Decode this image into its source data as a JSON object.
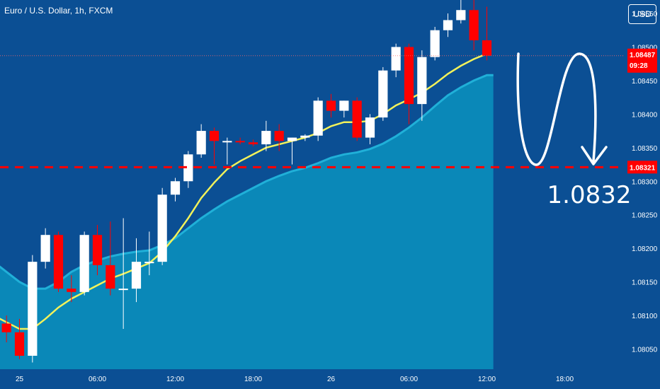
{
  "header": {
    "symbol": "Euro / U.S. Dollar, 1h, FXCM",
    "currency_button": "USD"
  },
  "current_price": {
    "label": "1.08487",
    "countdown": "09:28",
    "value": 1.08487,
    "color": "#ff0000"
  },
  "target": {
    "label": "1.0832",
    "axis_label": "1.08321",
    "value": 1.08321,
    "color": "#ff0000"
  },
  "colors": {
    "background": "#0b4f94",
    "area_fill": "#0a88b8",
    "area_line": "#20b0d8",
    "ma_line": "#f2f25a",
    "ma_line_early": "#9be28c",
    "bull_candle": "#ffffff",
    "bear_candle": "#ff0000"
  },
  "chart_data": {
    "type": "candlestick",
    "title": "Euro / U.S. Dollar, 1h, FXCM",
    "y_axis": {
      "ticks": [
        1.0855,
        1.085,
        1.0845,
        1.084,
        1.0835,
        1.083,
        1.0825,
        1.082,
        1.0815,
        1.081,
        1.0805
      ],
      "tick_labels": [
        "1.08550",
        "1.08500",
        "1.08450",
        "1.08400",
        "1.08350",
        "1.08300",
        "1.08250",
        "1.08200",
        "1.08150",
        "1.08100",
        "1.08050"
      ],
      "ylim": [
        1.0802,
        1.0857
      ]
    },
    "x_axis": {
      "tick_labels": [
        "25",
        "06:00",
        "12:00",
        "18:00",
        "26",
        "06:00",
        "12:00",
        "18:00"
      ],
      "tick_bars": [
        1,
        7,
        13,
        19,
        25,
        31,
        37,
        43
      ],
      "total_bars": 48
    },
    "candles": [
      {
        "o": 1.08078,
        "h": 1.08095,
        "l": 1.0805,
        "c": 1.08088
      },
      {
        "o": 1.08088,
        "h": 1.081,
        "l": 1.0806,
        "c": 1.08075
      },
      {
        "o": 1.08075,
        "h": 1.08095,
        "l": 1.08035,
        "c": 1.0804
      },
      {
        "o": 1.0804,
        "h": 1.0819,
        "l": 1.0803,
        "c": 1.0818
      },
      {
        "o": 1.0818,
        "h": 1.0823,
        "l": 1.0817,
        "c": 1.0822
      },
      {
        "o": 1.0822,
        "h": 1.08225,
        "l": 1.08135,
        "c": 1.0814
      },
      {
        "o": 1.0814,
        "h": 1.0816,
        "l": 1.0812,
        "c": 1.08135
      },
      {
        "o": 1.08135,
        "h": 1.08225,
        "l": 1.0813,
        "c": 1.0822
      },
      {
        "o": 1.0822,
        "h": 1.08235,
        "l": 1.0816,
        "c": 1.08175
      },
      {
        "o": 1.08175,
        "h": 1.0824,
        "l": 1.0813,
        "c": 1.0814
      },
      {
        "o": 1.0814,
        "h": 1.08245,
        "l": 1.0808,
        "c": 1.0814
      },
      {
        "o": 1.0814,
        "h": 1.08215,
        "l": 1.0812,
        "c": 1.0818
      },
      {
        "o": 1.0818,
        "h": 1.08225,
        "l": 1.0816,
        "c": 1.0818
      },
      {
        "o": 1.0818,
        "h": 1.0829,
        "l": 1.08175,
        "c": 1.0828
      },
      {
        "o": 1.0828,
        "h": 1.08305,
        "l": 1.0827,
        "c": 1.083
      },
      {
        "o": 1.083,
        "h": 1.08345,
        "l": 1.0829,
        "c": 1.0834
      },
      {
        "o": 1.0834,
        "h": 1.08385,
        "l": 1.08335,
        "c": 1.08375
      },
      {
        "o": 1.08375,
        "h": 1.0838,
        "l": 1.08325,
        "c": 1.0836
      },
      {
        "o": 1.0836,
        "h": 1.08365,
        "l": 1.08325,
        "c": 1.0836
      },
      {
        "o": 1.0836,
        "h": 1.08365,
        "l": 1.08355,
        "c": 1.08358
      },
      {
        "o": 1.08358,
        "h": 1.08362,
        "l": 1.08352,
        "c": 1.08355
      },
      {
        "o": 1.08355,
        "h": 1.0839,
        "l": 1.08345,
        "c": 1.08375
      },
      {
        "o": 1.08375,
        "h": 1.08385,
        "l": 1.08345,
        "c": 1.0836
      },
      {
        "o": 1.0836,
        "h": 1.08365,
        "l": 1.08325,
        "c": 1.08365
      },
      {
        "o": 1.08365,
        "h": 1.0837,
        "l": 1.0836,
        "c": 1.08368
      },
      {
        "o": 1.08368,
        "h": 1.08425,
        "l": 1.0836,
        "c": 1.0842
      },
      {
        "o": 1.0842,
        "h": 1.0843,
        "l": 1.08395,
        "c": 1.08405
      },
      {
        "o": 1.08405,
        "h": 1.0842,
        "l": 1.08395,
        "c": 1.0842
      },
      {
        "o": 1.0842,
        "h": 1.08425,
        "l": 1.0836,
        "c": 1.08365
      },
      {
        "o": 1.08365,
        "h": 1.084,
        "l": 1.08355,
        "c": 1.08395
      },
      {
        "o": 1.08395,
        "h": 1.0847,
        "l": 1.0839,
        "c": 1.08465
      },
      {
        "o": 1.08465,
        "h": 1.08505,
        "l": 1.08455,
        "c": 1.085
      },
      {
        "o": 1.085,
        "h": 1.08505,
        "l": 1.08385,
        "c": 1.08415
      },
      {
        "o": 1.08415,
        "h": 1.08495,
        "l": 1.0839,
        "c": 1.08485
      },
      {
        "o": 1.08485,
        "h": 1.0853,
        "l": 1.0848,
        "c": 1.08525
      },
      {
        "o": 1.08525,
        "h": 1.0855,
        "l": 1.08515,
        "c": 1.0854
      },
      {
        "o": 1.0854,
        "h": 1.0858,
        "l": 1.08535,
        "c": 1.08555
      },
      {
        "o": 1.08555,
        "h": 1.08575,
        "l": 1.08495,
        "c": 1.0851
      },
      {
        "o": 1.0851,
        "h": 1.0856,
        "l": 1.0848,
        "c": 1.08487
      }
    ],
    "ma": [
      1.081,
      1.0809,
      1.0808,
      1.0808,
      1.08095,
      1.08112,
      1.08125,
      1.08135,
      1.08145,
      1.08155,
      1.08162,
      1.0817,
      1.08178,
      1.08195,
      1.08218,
      1.08245,
      1.08275,
      1.08298,
      1.08318,
      1.0833,
      1.0834,
      1.0835,
      1.08355,
      1.0836,
      1.08365,
      1.08372,
      1.08382,
      1.08388,
      1.08388,
      1.0839,
      1.084,
      1.08413,
      1.08422,
      1.08432,
      1.08445,
      1.0846,
      1.08472,
      1.08482,
      1.0849
    ],
    "area": [
      1.0818,
      1.08165,
      1.0815,
      1.0814,
      1.0814,
      1.0815,
      1.08165,
      1.08175,
      1.08182,
      1.08188,
      1.08192,
      1.08195,
      1.08197,
      1.08205,
      1.08215,
      1.0823,
      1.08245,
      1.08258,
      1.0827,
      1.0828,
      1.0829,
      1.083,
      1.08308,
      1.08315,
      1.0832,
      1.08327,
      1.08335,
      1.0834,
      1.08343,
      1.08348,
      1.08356,
      1.08367,
      1.0838,
      1.08395,
      1.08412,
      1.08428,
      1.0844,
      1.0845,
      1.08458
    ]
  }
}
